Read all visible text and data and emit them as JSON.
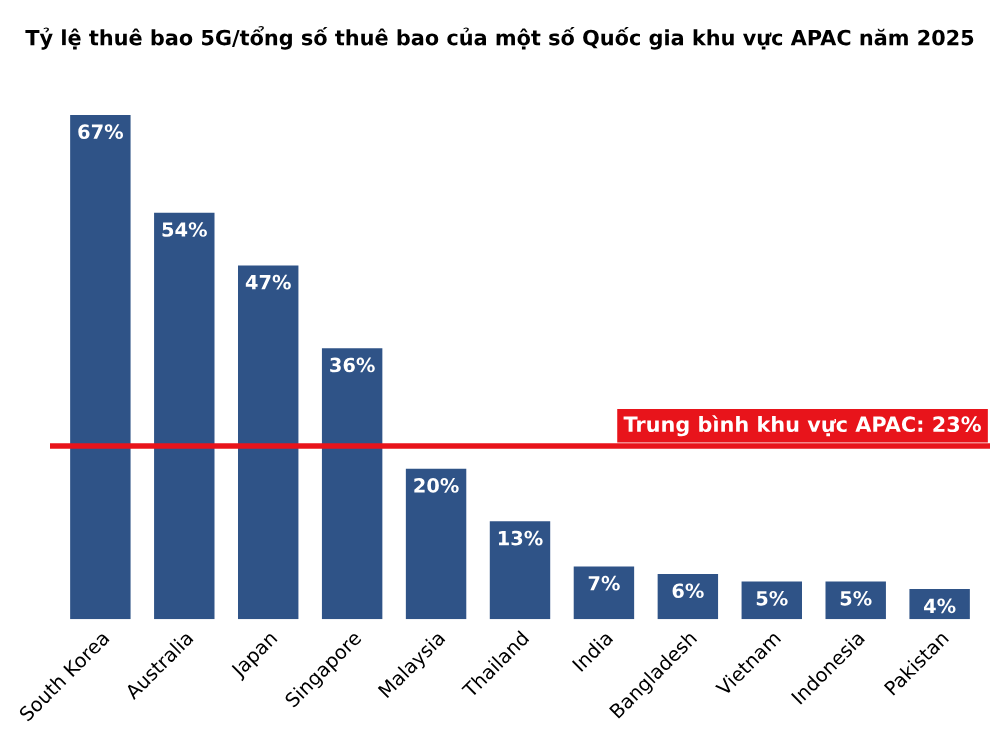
{
  "chart_data": {
    "type": "bar",
    "title": "Tỷ lệ thuê bao 5G/tổng số thuê bao của một số Quốc gia khu vực APAC năm 2025",
    "categories": [
      "South Korea",
      "Australia",
      "Japan",
      "Singapore",
      "Malaysia",
      "Thailand",
      "India",
      "Bangladesh",
      "Vietnam",
      "Indonesia",
      "Pakistan"
    ],
    "values": [
      67,
      54,
      47,
      36,
      20,
      13,
      7,
      6,
      5,
      5,
      4
    ],
    "value_labels": [
      "67%",
      "54%",
      "47%",
      "36%",
      "20%",
      "13%",
      "7%",
      "6%",
      "5%",
      "5%",
      "4%"
    ],
    "color": "#2f5387",
    "ref_lines": [
      {
        "axis": "y",
        "value": 23,
        "label": "Trung bình khu vực APAC: 23%",
        "color": "#e8141b"
      }
    ],
    "grid": false,
    "legend": false
  }
}
